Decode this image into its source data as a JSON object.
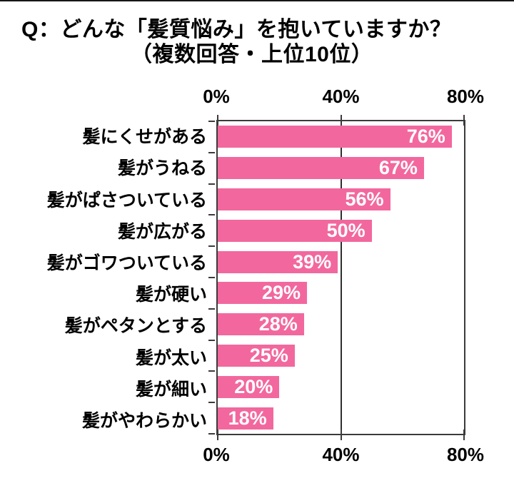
{
  "page": {
    "background": "#ffffff",
    "top_border_color": "#161616"
  },
  "title": {
    "line1": "Q：どんな「髪質悩み」を抱いていますか？",
    "line2": "（複数回答・上位10位）"
  },
  "chart_data": {
    "type": "bar",
    "orientation": "horizontal",
    "title": "Q：どんな「髪質悩み」を抱いていますか？（複数回答・上位10位）",
    "categories": [
      "髪にくせがある",
      "髪がうねる",
      "髪がぱさついている",
      "髪が広がる",
      "髪がゴワついている",
      "髪が硬い",
      "髪がペタンとする",
      "髪が太い",
      "髪が細い",
      "髪がやわらかい"
    ],
    "values": [
      76,
      67,
      56,
      50,
      39,
      29,
      28,
      25,
      20,
      18
    ],
    "value_labels": [
      "76%",
      "67%",
      "56%",
      "50%",
      "39%",
      "29%",
      "28%",
      "25%",
      "20%",
      "18%"
    ],
    "xlabel": "",
    "ylabel": "",
    "xlim": [
      0,
      80
    ],
    "x_ticks": [
      {
        "label": "0%",
        "value": 0
      },
      {
        "label": "40%",
        "value": 40
      },
      {
        "label": "80%",
        "value": 80
      }
    ],
    "grid": true,
    "legend": false,
    "axis_positions": "top-and-bottom",
    "bar_color": "#f2689e",
    "value_label_color": "#ffffff",
    "category_label_color": "#000000",
    "axis_color": "#3b3b3b"
  }
}
